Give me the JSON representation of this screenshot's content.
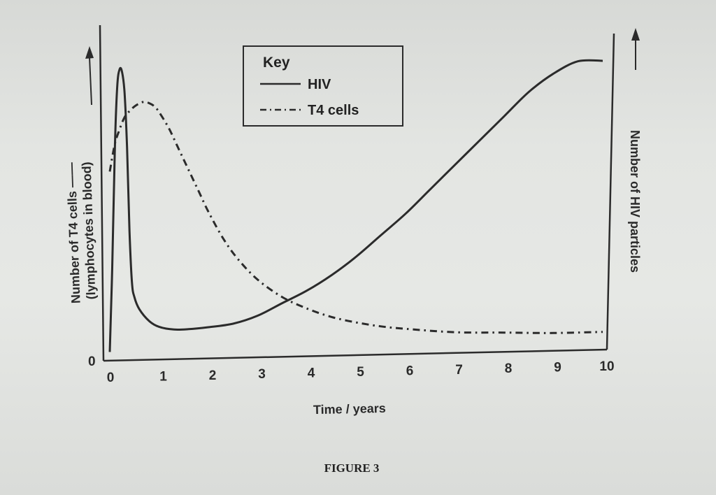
{
  "chart_data": {
    "type": "line",
    "xlabel": "Time / years",
    "ylabel_left": "Number of T4 cells (lymphocytes in blood)",
    "ylabel_right": "Number of HIV particles",
    "x_ticks": [
      "0",
      "1",
      "2",
      "3",
      "4",
      "5",
      "6",
      "7",
      "8",
      "9",
      "10"
    ],
    "y_ticks_left": [
      "0"
    ],
    "xlim": [
      0,
      10
    ],
    "ylim": [
      0,
      100
    ],
    "grid": false,
    "legend": {
      "title": "Key",
      "placement": "top-center"
    },
    "series": [
      {
        "name": "HIV",
        "style": "solid",
        "axis": "right",
        "x": [
          0,
          0.05,
          0.1,
          0.15,
          0.2,
          0.25,
          0.3,
          0.35,
          0.4,
          0.45,
          0.5,
          0.6,
          0.8,
          1.0,
          1.3,
          1.6,
          2.0,
          2.5,
          3.0,
          3.5,
          4.0,
          4.5,
          5.0,
          5.5,
          6.0,
          6.5,
          7.0,
          7.5,
          8.0,
          8.5,
          9.0,
          9.5,
          10.0
        ],
        "y": [
          2,
          30,
          68,
          90,
          96,
          95,
          88,
          70,
          42,
          25,
          20,
          16,
          12,
          10,
          9,
          9,
          9.5,
          10.5,
          13,
          17,
          21,
          26,
          32,
          39,
          46,
          54,
          62,
          70,
          78,
          86,
          92,
          96,
          96
        ]
      },
      {
        "name": "T4 cells",
        "style": "dashdot",
        "axis": "left",
        "x": [
          0,
          0.1,
          0.2,
          0.3,
          0.4,
          0.5,
          0.6,
          0.7,
          0.8,
          0.9,
          1.0,
          1.2,
          1.4,
          1.6,
          1.8,
          2.0,
          2.3,
          2.6,
          3.0,
          3.5,
          4.0,
          4.5,
          5.0,
          5.5,
          6.0,
          7.0,
          8.0,
          9.0,
          10.0
        ],
        "y": [
          62,
          71,
          76,
          80,
          82,
          83.5,
          84.5,
          85,
          84.5,
          83.5,
          81.5,
          76,
          69,
          62,
          55,
          48,
          39,
          32,
          25,
          19,
          15,
          12,
          10,
          8.5,
          7.5,
          6,
          5.5,
          5,
          5
        ]
      }
    ]
  },
  "caption": "FIGURE 3",
  "colors": {
    "line": "#2b2b2b",
    "background": "#e3e5e2"
  }
}
